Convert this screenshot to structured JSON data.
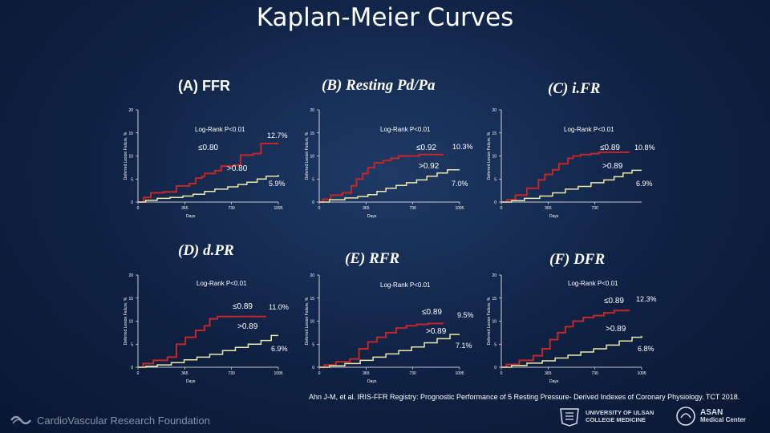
{
  "slide": {
    "title": "Kaplan-Meier Curves",
    "citation": "Ahn J-M, et al. IRIS-FFR Registry: Prognostic Performance of 5 Resting Pressure- Derived Indexes of Coronary Physiology. TCT 2018.",
    "footer": {
      "left_logo_text": "CardioVascular Research Foundation",
      "univ_line1": "UNIVERSITY OF ULSAN",
      "univ_line2": "COLLEGE MEDICINE",
      "asan_line1": "ASAN",
      "asan_line2": "Medical Center"
    }
  },
  "colors": {
    "red": "#c42727",
    "yellow": "#ece9a8",
    "white": "#ffffff"
  },
  "chart_data": [
    {
      "panel": "(A) FFR",
      "type": "line",
      "ylabel": "Deferred Lesion Failure, %",
      "xlabel": "Days",
      "ylim": [
        0,
        20
      ],
      "xlim": [
        0,
        1095
      ],
      "yticks": [
        "0",
        "5",
        "10",
        "15",
        "20"
      ],
      "xticks": [
        "0",
        "365",
        "730",
        "1095"
      ],
      "logrank": "Log-Rank P<0.01",
      "series": [
        {
          "name": "≤0.80",
          "end_label": "12.7%",
          "color": "red",
          "points": [
            [
              0,
              0
            ],
            [
              45,
              1
            ],
            [
              100,
              2
            ],
            [
              200,
              2.2
            ],
            [
              300,
              3.5
            ],
            [
              400,
              4
            ],
            [
              450,
              5.2
            ],
            [
              500,
              5.5
            ],
            [
              520,
              6.2
            ],
            [
              600,
              6.8
            ],
            [
              650,
              7.8
            ],
            [
              750,
              8
            ],
            [
              800,
              10.2
            ],
            [
              900,
              10.5
            ],
            [
              960,
              12.7
            ],
            [
              1095,
              12.7
            ]
          ]
        },
        {
          "name": ">0.80",
          "end_label": "5.9%",
          "color": "yellow",
          "points": [
            [
              0,
              0
            ],
            [
              60,
              0.4
            ],
            [
              150,
              0.8
            ],
            [
              250,
              1
            ],
            [
              350,
              1.3
            ],
            [
              430,
              1.7
            ],
            [
              520,
              2.3
            ],
            [
              600,
              2.8
            ],
            [
              700,
              3.3
            ],
            [
              780,
              3.8
            ],
            [
              850,
              4.3
            ],
            [
              930,
              5
            ],
            [
              1000,
              5.6
            ],
            [
              1095,
              5.9
            ]
          ]
        }
      ]
    },
    {
      "panel": "(B) Resting  Pd/Pa",
      "type": "line",
      "ylabel": "Deferred Lesion Failure, %",
      "xlabel": "Days",
      "ylim": [
        0,
        20
      ],
      "xlim": [
        0,
        1095
      ],
      "yticks": [
        "0",
        "5",
        "10",
        "15",
        "20"
      ],
      "xticks": [
        "0",
        "365",
        "730",
        "1095"
      ],
      "logrank": "Log-Rank P<0.01",
      "series": [
        {
          "name": "≤0.92",
          "end_label": "10.3%",
          "color": "red",
          "points": [
            [
              0,
              0
            ],
            [
              30,
              0.6
            ],
            [
              90,
              1.5
            ],
            [
              180,
              2
            ],
            [
              250,
              3.5
            ],
            [
              290,
              5
            ],
            [
              340,
              6.2
            ],
            [
              380,
              7.5
            ],
            [
              430,
              8.5
            ],
            [
              500,
              9
            ],
            [
              560,
              9.5
            ],
            [
              620,
              10
            ],
            [
              760,
              10
            ],
            [
              780,
              10.3
            ],
            [
              970,
              10.3
            ]
          ]
        },
        {
          "name": ">0.92",
          "end_label": "7.0%",
          "color": "yellow",
          "points": [
            [
              0,
              0
            ],
            [
              80,
              0.5
            ],
            [
              200,
              0.9
            ],
            [
              300,
              1.2
            ],
            [
              380,
              1.6
            ],
            [
              450,
              2.3
            ],
            [
              520,
              3
            ],
            [
              600,
              3.6
            ],
            [
              680,
              4.2
            ],
            [
              760,
              4.8
            ],
            [
              840,
              5.6
            ],
            [
              920,
              6.3
            ],
            [
              1000,
              7
            ],
            [
              1095,
              7
            ]
          ]
        }
      ]
    },
    {
      "panel": "(C) i.FR",
      "type": "line",
      "ylabel": "Deferred Lesion Failure, %",
      "xlabel": "Days",
      "ylim": [
        0,
        20
      ],
      "xlim": [
        0,
        1095
      ],
      "yticks": [
        "0",
        "5",
        "10",
        "15",
        "20"
      ],
      "xticks": [
        "0",
        "365",
        "730"
      ],
      "logrank": "Log-Rank P<0.01",
      "series": [
        {
          "name": "≤0.89",
          "end_label": "10.8%",
          "color": "red",
          "points": [
            [
              0,
              0
            ],
            [
              45,
              0.5
            ],
            [
              110,
              1.5
            ],
            [
              200,
              3
            ],
            [
              290,
              4.8
            ],
            [
              340,
              6
            ],
            [
              400,
              7
            ],
            [
              450,
              8.3
            ],
            [
              520,
              9.5
            ],
            [
              560,
              10
            ],
            [
              620,
              10.3
            ],
            [
              700,
              10.5
            ],
            [
              760,
              10.8
            ],
            [
              1000,
              10.8
            ]
          ]
        },
        {
          "name": ">0.89",
          "end_label": "6.9%",
          "color": "yellow",
          "points": [
            [
              0,
              0
            ],
            [
              80,
              0.3
            ],
            [
              180,
              0.8
            ],
            [
              300,
              1.3
            ],
            [
              400,
              2
            ],
            [
              500,
              2.8
            ],
            [
              600,
              3.4
            ],
            [
              700,
              4.2
            ],
            [
              800,
              4.8
            ],
            [
              880,
              5.5
            ],
            [
              950,
              6.3
            ],
            [
              1020,
              6.9
            ],
            [
              1095,
              6.9
            ]
          ]
        }
      ]
    },
    {
      "panel": "(D) d.PR",
      "type": "line",
      "ylabel": "Deferred Lesion Failure, %",
      "xlabel": "Days",
      "ylim": [
        0,
        20
      ],
      "xlim": [
        0,
        1095
      ],
      "yticks": [
        "0",
        "5",
        "10",
        "15",
        "20"
      ],
      "xticks": [
        "0",
        "365",
        "730",
        "1095"
      ],
      "logrank": "Log-Rank P<0.01",
      "series": [
        {
          "name": "≤0.89",
          "end_label": "11.0%",
          "color": "red",
          "points": [
            [
              0,
              0
            ],
            [
              40,
              0.8
            ],
            [
              120,
              1.5
            ],
            [
              230,
              2.2
            ],
            [
              300,
              5
            ],
            [
              370,
              6.5
            ],
            [
              450,
              8
            ],
            [
              520,
              9
            ],
            [
              560,
              10.5
            ],
            [
              620,
              11
            ],
            [
              1000,
              11
            ]
          ]
        },
        {
          "name": ">0.89",
          "end_label": "6.9%",
          "color": "yellow",
          "points": [
            [
              0,
              0
            ],
            [
              60,
              0.2
            ],
            [
              150,
              0.5
            ],
            [
              260,
              1
            ],
            [
              360,
              1.6
            ],
            [
              460,
              2.2
            ],
            [
              560,
              2.8
            ],
            [
              660,
              3.6
            ],
            [
              760,
              4.3
            ],
            [
              860,
              5
            ],
            [
              960,
              5.8
            ],
            [
              1040,
              6.9
            ],
            [
              1095,
              6.9
            ]
          ]
        }
      ]
    },
    {
      "panel": "(E) RFR",
      "type": "line",
      "ylabel": "Deferred Lesion Failure, %",
      "xlabel": "Days",
      "ylim": [
        0,
        20
      ],
      "xlim": [
        0,
        1095
      ],
      "yticks": [
        "0",
        "5",
        "10",
        "15",
        "20"
      ],
      "xticks": [
        "0",
        "365",
        "730",
        "1095"
      ],
      "logrank": "Log-Rank P<0.01",
      "series": [
        {
          "name": "≤0.89",
          "end_label": "9.5%",
          "color": "red",
          "points": [
            [
              0,
              0
            ],
            [
              40,
              0.5
            ],
            [
              130,
              1.2
            ],
            [
              240,
              1.8
            ],
            [
              310,
              4
            ],
            [
              380,
              5.5
            ],
            [
              450,
              6.5
            ],
            [
              520,
              7.5
            ],
            [
              600,
              8.5
            ],
            [
              680,
              9
            ],
            [
              760,
              9.3
            ],
            [
              850,
              9.5
            ],
            [
              970,
              9.5
            ]
          ]
        },
        {
          "name": ">0.89",
          "end_label": "7.1%",
          "color": "yellow",
          "points": [
            [
              0,
              0
            ],
            [
              80,
              0.3
            ],
            [
              200,
              0.8
            ],
            [
              320,
              1.5
            ],
            [
              420,
              2.2
            ],
            [
              520,
              2.9
            ],
            [
              620,
              3.6
            ],
            [
              720,
              4.4
            ],
            [
              820,
              5.3
            ],
            [
              920,
              6.2
            ],
            [
              1020,
              7.1
            ],
            [
              1095,
              7.1
            ]
          ]
        }
      ]
    },
    {
      "panel": "(F) DFR",
      "type": "line",
      "ylabel": "Deferred Lesion Failure, %",
      "xlabel": "Days",
      "ylim": [
        0,
        20
      ],
      "xlim": [
        0,
        1095
      ],
      "yticks": [
        "0",
        "5",
        "10",
        "15",
        "20"
      ],
      "xticks": [
        "0",
        "365",
        "730",
        "1095"
      ],
      "logrank": "Log-Rank P<0.01",
      "series": [
        {
          "name": "≤0.89",
          "end_label": "12.3%",
          "color": "red",
          "points": [
            [
              0,
              0
            ],
            [
              40,
              0.6
            ],
            [
              140,
              1.5
            ],
            [
              250,
              2.5
            ],
            [
              320,
              4
            ],
            [
              380,
              6
            ],
            [
              440,
              7.5
            ],
            [
              500,
              8.8
            ],
            [
              560,
              10
            ],
            [
              640,
              10.8
            ],
            [
              720,
              11.2
            ],
            [
              800,
              11.8
            ],
            [
              880,
              12.3
            ],
            [
              1000,
              12.3
            ]
          ]
        },
        {
          "name": ">0.89",
          "end_label": "6.8%",
          "color": "yellow",
          "points": [
            [
              0,
              0
            ],
            [
              80,
              0.4
            ],
            [
              200,
              0.9
            ],
            [
              320,
              1.4
            ],
            [
              420,
              2
            ],
            [
              520,
              2.6
            ],
            [
              620,
              3.3
            ],
            [
              720,
              4
            ],
            [
              820,
              4.8
            ],
            [
              920,
              5.7
            ],
            [
              1020,
              6.5
            ],
            [
              1095,
              6.8
            ]
          ]
        }
      ]
    }
  ]
}
